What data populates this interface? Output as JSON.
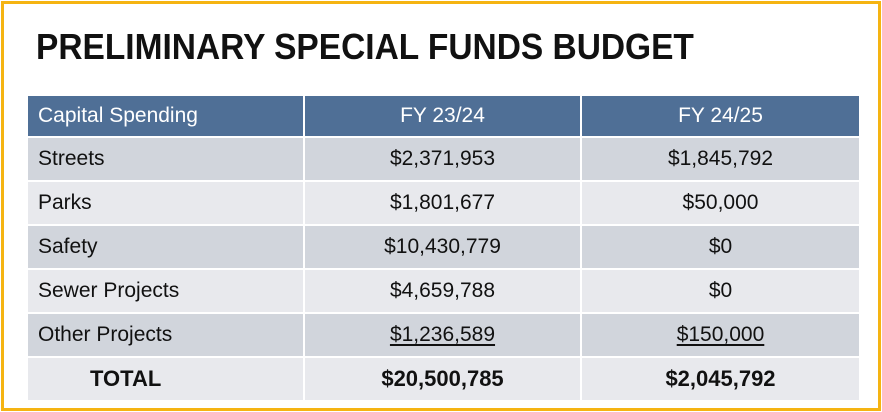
{
  "title": "PRELIMINARY SPECIAL FUNDS BUDGET",
  "colors": {
    "border": "#f5b412",
    "header_bg": "#4f6f96",
    "row_dark": "#d1d5dc",
    "row_light": "#e8e9ed"
  },
  "table": {
    "headers": [
      "Capital Spending",
      "FY 23/24",
      "FY 24/25"
    ],
    "rows": [
      {
        "label": "Streets",
        "fy2324": "$2,371,953",
        "fy2425": "$1,845,792"
      },
      {
        "label": "Parks",
        "fy2324": "$1,801,677",
        "fy2425": "$50,000"
      },
      {
        "label": "Safety",
        "fy2324": "$10,430,779",
        "fy2425": "$0"
      },
      {
        "label": "Sewer Projects",
        "fy2324": "$4,659,788",
        "fy2425": "$0"
      },
      {
        "label": "Other Projects",
        "fy2324": "$1,236,589",
        "fy2425": "$150,000"
      }
    ],
    "total": {
      "label": "TOTAL",
      "fy2324": "$20,500,785",
      "fy2425": "$2,045,792"
    }
  }
}
